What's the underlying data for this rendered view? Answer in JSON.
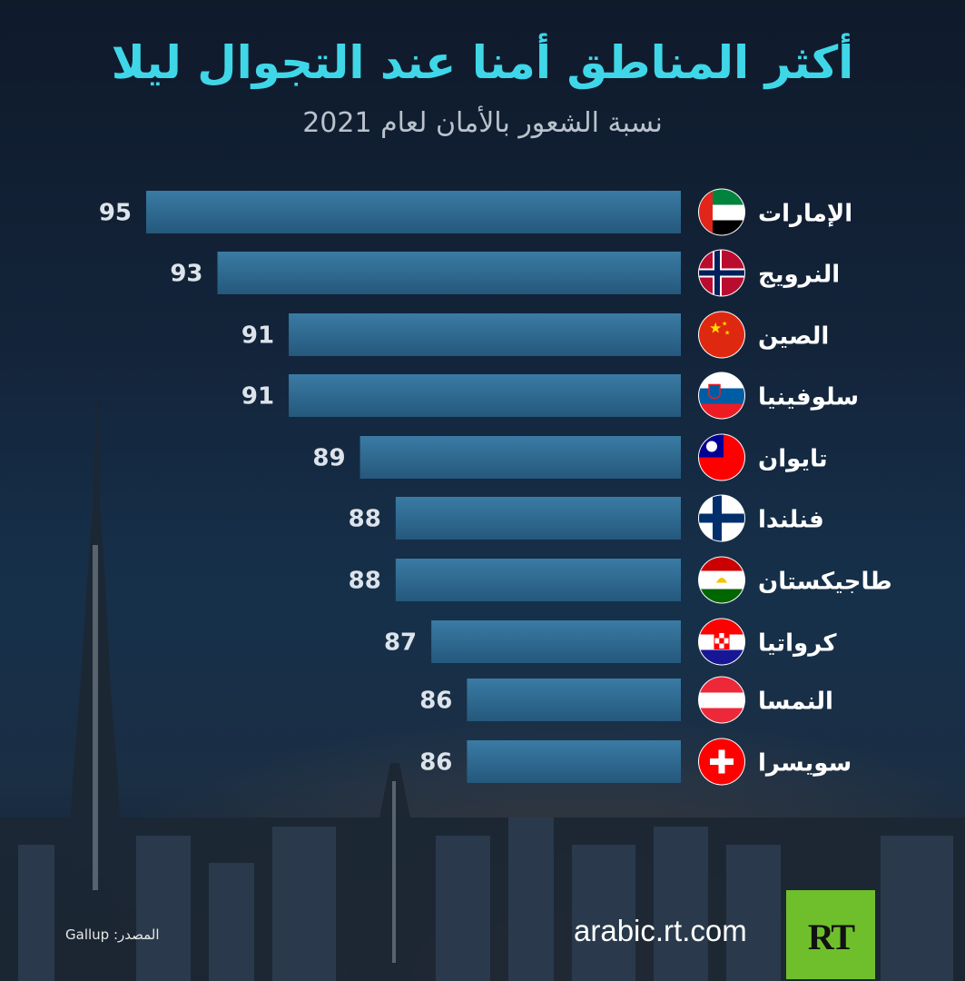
{
  "header": {
    "title": "أكثر المناطق أمنا عند التجوال ليلا",
    "subtitle": "نسبة الشعور بالأمان لعام 2021"
  },
  "footer": {
    "source": "المصدر: Gallup",
    "site": "arabic.rt.com",
    "logo_text": "RT"
  },
  "colors": {
    "title": "#3fd7e8",
    "bar_top": "#3a7ba4",
    "bar_bottom": "#25587c",
    "logo_green": "#6fbf2c"
  },
  "chart_data": {
    "type": "bar",
    "orientation": "horizontal",
    "categories": [
      "الإمارات",
      "النرويج",
      "الصين",
      "سلوفينيا",
      "تايوان",
      "فنلندا",
      "طاجيكستان",
      "كرواتيا",
      "النمسا",
      "سويسرا"
    ],
    "values": [
      95,
      93,
      91,
      91,
      89,
      88,
      88,
      87,
      86,
      86
    ],
    "flags": [
      "uae-flag-icon",
      "norway-flag-icon",
      "china-flag-icon",
      "slovenia-flag-icon",
      "taiwan-flag-icon",
      "finland-flag-icon",
      "tajikistan-flag-icon",
      "croatia-flag-icon",
      "austria-flag-icon",
      "switzerland-flag-icon"
    ],
    "title": "أكثر المناطق أمنا عند التجوال ليلا",
    "subtitle": "نسبة الشعور بالأمان لعام 2021"
  }
}
